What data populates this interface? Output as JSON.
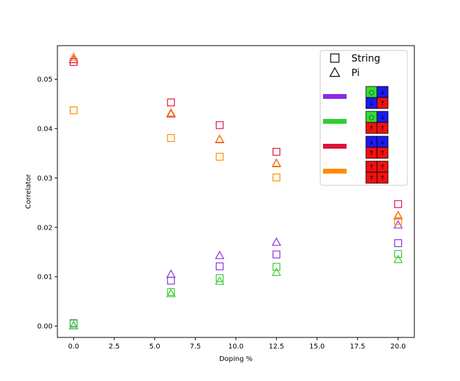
{
  "chart_data": {
    "type": "scatter",
    "xlabel": "Doping %",
    "ylabel": "Correlator",
    "xlim": [
      -1.0,
      21.0
    ],
    "ylim": [
      -0.0023,
      0.0568
    ],
    "grid": false,
    "xticks": [
      "0.0",
      "2.5",
      "5.0",
      "7.5",
      "10.0",
      "12.5",
      "15.0",
      "17.5",
      "20.0"
    ],
    "yticks": [
      "0.00",
      "0.01",
      "0.02",
      "0.03",
      "0.04",
      "0.05"
    ],
    "marker_legend": [
      {
        "marker": "square",
        "label": "String"
      },
      {
        "marker": "triangle",
        "label": "Pi"
      }
    ],
    "color_legend": [
      {
        "color": "#8a2be2",
        "cells": [
          {
            "fill": "#33dd33",
            "glyph": "○"
          },
          {
            "fill": "#1a1aee",
            "glyph": "↓"
          },
          {
            "fill": "#1a1aee",
            "glyph": "↓"
          },
          {
            "fill": "#ee1111",
            "glyph": "↑"
          }
        ]
      },
      {
        "color": "#33cc33",
        "cells": [
          {
            "fill": "#33dd33",
            "glyph": "○"
          },
          {
            "fill": "#1a1aee",
            "glyph": "↓"
          },
          {
            "fill": "#ee1111",
            "glyph": "↑"
          },
          {
            "fill": "#ee1111",
            "glyph": "↑"
          }
        ]
      },
      {
        "color": "#dc143c",
        "cells": [
          {
            "fill": "#1a1aee",
            "glyph": "↓"
          },
          {
            "fill": "#1a1aee",
            "glyph": "↓"
          },
          {
            "fill": "#ee1111",
            "glyph": "↑"
          },
          {
            "fill": "#ee1111",
            "glyph": "↑"
          }
        ]
      },
      {
        "color": "#ff8c00",
        "cells": [
          {
            "fill": "#ee1111",
            "glyph": "↑"
          },
          {
            "fill": "#ee1111",
            "glyph": "↑"
          },
          {
            "fill": "#ee1111",
            "glyph": "↑"
          },
          {
            "fill": "#ee1111",
            "glyph": "↑"
          }
        ]
      }
    ],
    "series": [
      {
        "color": "#8a2be2",
        "marker": "square",
        "x": [
          0,
          6,
          9,
          12.5,
          20
        ],
        "y": [
          0.0006,
          0.0092,
          0.0121,
          0.0145,
          0.0168
        ]
      },
      {
        "color": "#8a2be2",
        "marker": "triangle",
        "x": [
          0,
          6,
          9,
          12.5,
          20
        ],
        "y": [
          0.0001,
          0.0105,
          0.0143,
          0.017,
          0.0205
        ]
      },
      {
        "color": "#33cc33",
        "marker": "square",
        "x": [
          0,
          6,
          9,
          12.5,
          20
        ],
        "y": [
          0.0005,
          0.0069,
          0.0097,
          0.012,
          0.0146
        ]
      },
      {
        "color": "#33cc33",
        "marker": "triangle",
        "x": [
          0,
          6,
          9,
          12.5,
          20
        ],
        "y": [
          0.0001,
          0.0066,
          0.0091,
          0.0109,
          0.0135
        ]
      },
      {
        "color": "#dc143c",
        "marker": "square",
        "x": [
          0,
          6,
          9,
          12.5,
          20
        ],
        "y": [
          0.0535,
          0.0453,
          0.0407,
          0.0353,
          0.0247
        ]
      },
      {
        "color": "#dc143c",
        "marker": "triangle",
        "x": [
          0,
          6,
          9,
          12.5,
          20
        ],
        "y": [
          0.054,
          0.043,
          0.0378,
          0.033,
          0.0224
        ]
      },
      {
        "color": "#ff8c00",
        "marker": "square",
        "x": [
          0,
          6,
          9,
          12.5,
          20
        ],
        "y": [
          0.0437,
          0.0381,
          0.0343,
          0.0301,
          0.0213
        ]
      },
      {
        "color": "#ff8c00",
        "marker": "triangle",
        "x": [
          0,
          6,
          9,
          12.5,
          20
        ],
        "y": [
          0.0545,
          0.0432,
          0.0379,
          0.0329,
          0.0223
        ]
      }
    ]
  }
}
